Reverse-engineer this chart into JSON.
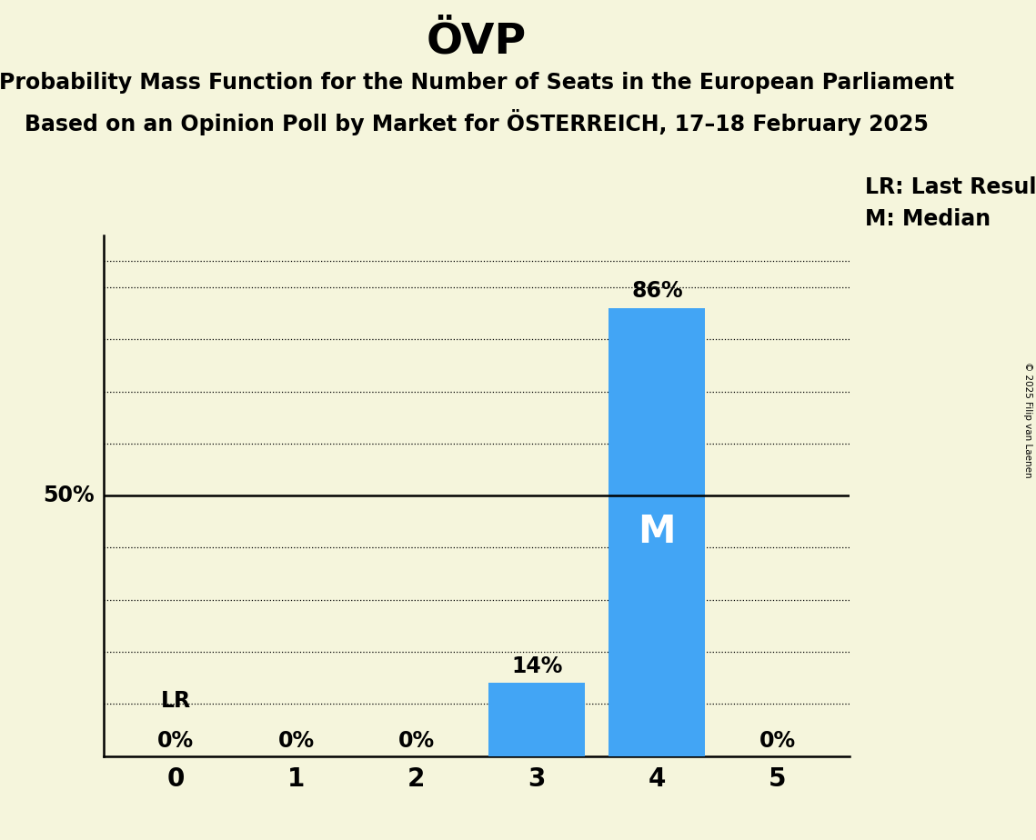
{
  "title": "ÖVP",
  "subtitle1": "Probability Mass Function for the Number of Seats in the European Parliament",
  "subtitle2": "Based on an Opinion Poll by Market for ÖSTERREICH, 17–18 February 2025",
  "copyright": "© 2025 Filip van Laenen",
  "categories": [
    0,
    1,
    2,
    3,
    4,
    5
  ],
  "values": [
    0.0,
    0.0,
    0.0,
    0.14,
    0.86,
    0.0
  ],
  "bar_color": "#42A5F5",
  "background_color": "#F5F5DC",
  "bar_labels": [
    "0%",
    "0%",
    "0%",
    "14%",
    "86%",
    "0%"
  ],
  "median_bar": 4,
  "last_result_bar": 3,
  "median_label": "M",
  "lr_label": "LR",
  "legend_lr": "LR: Last Result",
  "legend_m": "M: Median",
  "ylim": [
    0,
    1.0
  ],
  "title_fontsize": 34,
  "subtitle_fontsize": 17,
  "label_fontsize": 17,
  "tick_fontsize": 20,
  "bar_label_fontsize": 17,
  "legend_fontsize": 17,
  "dotted_yticks": [
    0.1,
    0.2,
    0.3,
    0.4,
    0.6,
    0.7,
    0.8,
    0.9,
    0.95
  ],
  "solid_ytick": 0.5
}
